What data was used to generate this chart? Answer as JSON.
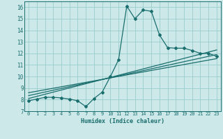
{
  "xlabel": "Humidex (Indice chaleur)",
  "background_color": "#cce8e8",
  "grid_color": "#99cccc",
  "line_color": "#1a6e6e",
  "xlim": [
    -0.5,
    23.5
  ],
  "ylim": [
    7,
    16.5
  ],
  "xticks": [
    0,
    1,
    2,
    3,
    4,
    5,
    6,
    7,
    8,
    9,
    10,
    11,
    12,
    13,
    14,
    15,
    16,
    17,
    18,
    19,
    20,
    21,
    22,
    23
  ],
  "yticks": [
    7,
    8,
    9,
    10,
    11,
    12,
    13,
    14,
    15,
    16
  ],
  "curve_x": [
    0,
    1,
    2,
    3,
    4,
    5,
    6,
    7,
    8,
    9,
    10,
    11,
    12,
    13,
    14,
    15,
    16,
    17,
    18,
    19,
    20,
    21,
    22,
    23
  ],
  "curve_y": [
    7.9,
    8.05,
    8.2,
    8.2,
    8.15,
    8.05,
    7.9,
    7.4,
    8.1,
    8.65,
    10.0,
    11.45,
    16.1,
    15.0,
    15.75,
    15.65,
    13.6,
    12.5,
    12.45,
    12.45,
    12.25,
    12.0,
    12.0,
    11.75
  ],
  "line1_x": [
    0,
    23
  ],
  "line1_y": [
    8.1,
    12.3
  ],
  "line2_x": [
    0,
    23
  ],
  "line2_y": [
    8.6,
    11.55
  ],
  "line3_x": [
    0,
    23
  ],
  "line3_y": [
    8.35,
    11.9
  ]
}
